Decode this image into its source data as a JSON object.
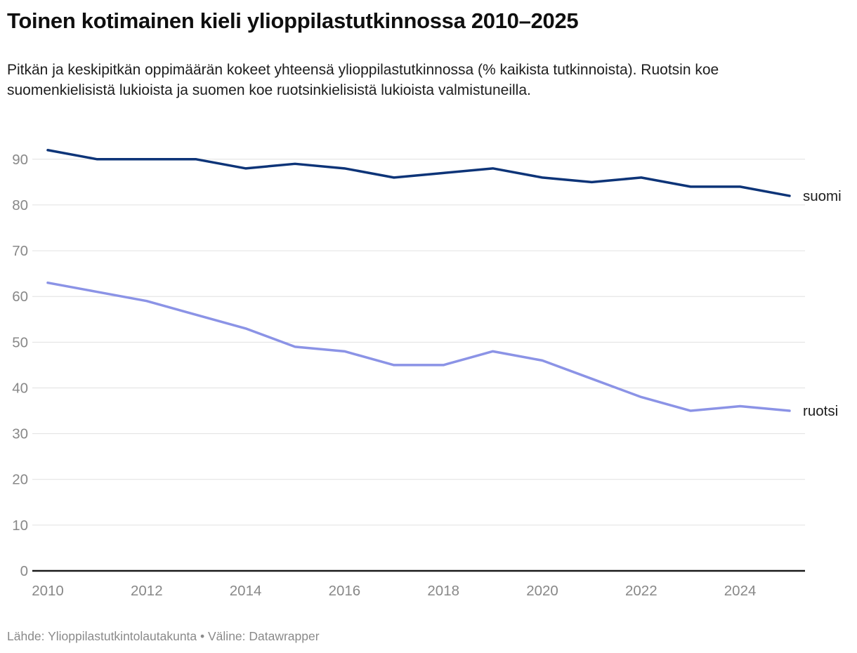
{
  "header": {
    "title": "Toinen kotimainen kieli ylioppilastutkinnossa 2010–2025",
    "subtitle": "Pitkän ja keskipitkän oppimäärän kokeet yhteensä ylioppilastutkinnossa (% kaikista tutkinnoista). Ruotsin koe suomenkielisistä lukioista ja suomen koe ruotsinkielisistä lukioista valmistuneilla."
  },
  "footer": {
    "text": "Lähde: Ylioppilastutkintolautakunta • Väline: Datawrapper"
  },
  "colors": {
    "suomi_line": "#0d3478",
    "ruotsi_line": "#8b93e6",
    "axis_label_text": "#888888",
    "gridline": "#e0e0e0",
    "baseline": "#1a1a1a",
    "series_label_text": "#1d1d1d"
  },
  "chart_data": {
    "type": "line",
    "title": "Toinen kotimainen kieli ylioppilastutkinnossa 2010–2025",
    "xlabel": "",
    "ylabel": "",
    "x": [
      2010,
      2011,
      2012,
      2013,
      2014,
      2015,
      2016,
      2017,
      2018,
      2019,
      2020,
      2021,
      2022,
      2023,
      2024,
      2025
    ],
    "series": [
      {
        "name": "suomi",
        "color": "#0d3478",
        "values": [
          92,
          90,
          90,
          90,
          88,
          89,
          88,
          86,
          87,
          88,
          86,
          85,
          86,
          84,
          84,
          82
        ]
      },
      {
        "name": "ruotsi",
        "color": "#8b93e6",
        "values": [
          63,
          61,
          59,
          56,
          53,
          49,
          48,
          45,
          45,
          48,
          46,
          42,
          38,
          35,
          36,
          35
        ]
      }
    ],
    "ylim": [
      0,
      93
    ],
    "y_ticks": [
      0,
      10,
      20,
      30,
      40,
      50,
      60,
      70,
      80,
      90
    ],
    "x_ticks": [
      2010,
      2012,
      2014,
      2016,
      2018,
      2020,
      2022,
      2024
    ],
    "grid": true,
    "legend_position": "direct-labels-at-line-end"
  }
}
